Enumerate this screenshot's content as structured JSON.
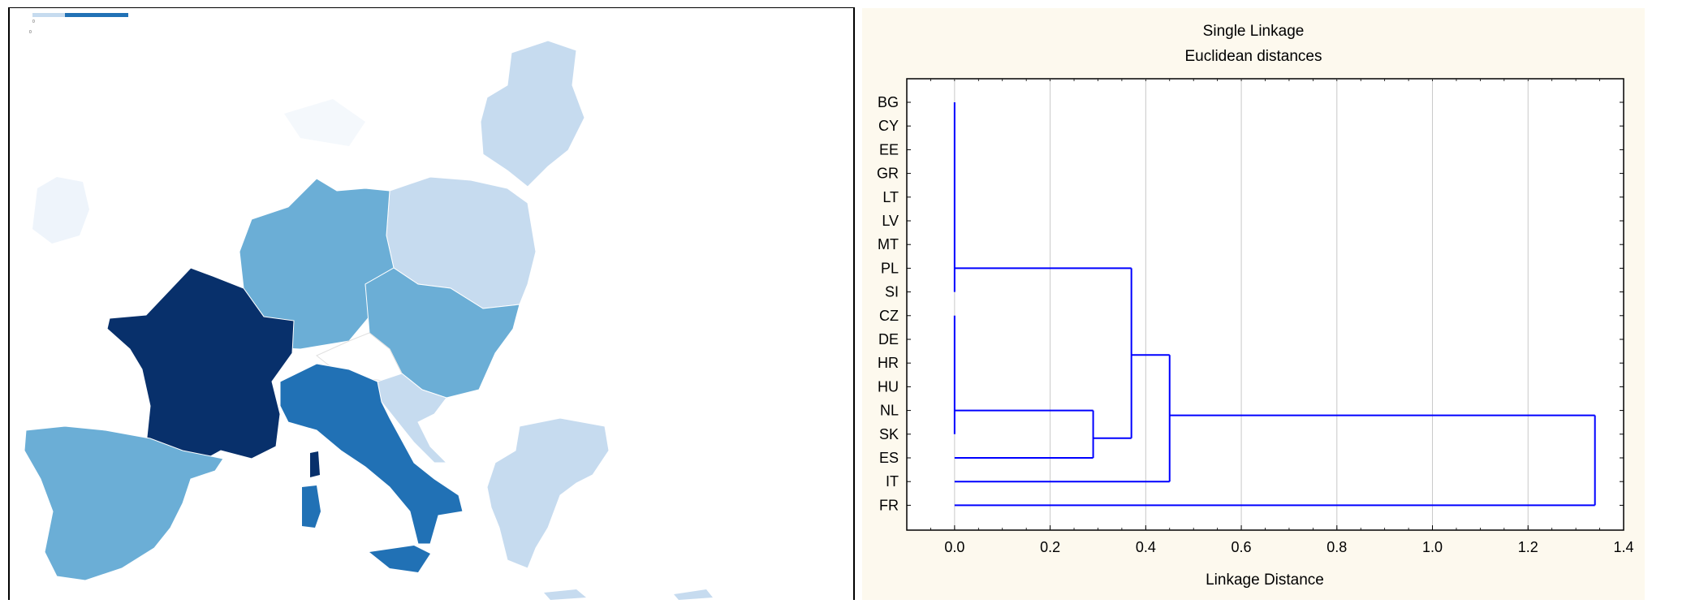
{
  "map": {
    "legend_min_label": "0",
    "legend_tick_label": "0",
    "colors": {
      "darkest": "#08306b",
      "dark": "#2171b5",
      "medium": "#6baed6",
      "light": "#c6dbef",
      "faint": "#eef4fb"
    },
    "regions": [
      {
        "name": "France",
        "shade": "darkest"
      },
      {
        "name": "Italy",
        "shade": "dark"
      },
      {
        "name": "Spain",
        "shade": "medium"
      },
      {
        "name": "Germany",
        "shade": "medium"
      },
      {
        "name": "Czechia",
        "shade": "medium"
      },
      {
        "name": "Slovakia",
        "shade": "medium"
      },
      {
        "name": "Hungary",
        "shade": "medium"
      },
      {
        "name": "Netherlands",
        "shade": "medium"
      },
      {
        "name": "Poland",
        "shade": "light"
      },
      {
        "name": "Baltic states",
        "shade": "light"
      },
      {
        "name": "Greece",
        "shade": "light"
      },
      {
        "name": "Slovenia",
        "shade": "light"
      },
      {
        "name": "Croatia",
        "shade": "light"
      }
    ]
  },
  "chart_data": {
    "type": "dendrogram",
    "title": "Single Linkage",
    "subtitle": "Euclidean distances",
    "xlabel": "Linkage Distance",
    "xlim": [
      -0.1,
      1.4
    ],
    "xticks": [
      "0.0",
      "0.2",
      "0.4",
      "0.6",
      "0.8",
      "1.0",
      "1.2",
      "1.4"
    ],
    "xtick_values": [
      0.0,
      0.2,
      0.4,
      0.6,
      0.8,
      1.0,
      1.2,
      1.4
    ],
    "grid": true,
    "line_color": "#0000ff",
    "leaves": [
      "BG",
      "CY",
      "EE",
      "GR",
      "LT",
      "LV",
      "MT",
      "PL",
      "SI",
      "CZ",
      "DE",
      "HR",
      "HU",
      "NL",
      "SK",
      "ES",
      "IT",
      "FR"
    ],
    "merges": [
      {
        "members": [
          "BG",
          "CY",
          "EE",
          "GR",
          "LT",
          "LV",
          "MT",
          "PL",
          "SI"
        ],
        "distance": 0.0
      },
      {
        "members": [
          "CZ",
          "DE",
          "HR",
          "HU",
          "NL",
          "SK"
        ],
        "distance": 0.0
      },
      {
        "members": [
          "CZ-SK group",
          "ES"
        ],
        "distance": 0.29
      },
      {
        "members": [
          "BG-SI group",
          "CZ-ES group"
        ],
        "distance": 0.37
      },
      {
        "members": [
          "BG-ES group",
          "IT"
        ],
        "distance": 0.45
      },
      {
        "members": [
          "BG-IT group",
          "FR"
        ],
        "distance": 1.34
      }
    ]
  }
}
